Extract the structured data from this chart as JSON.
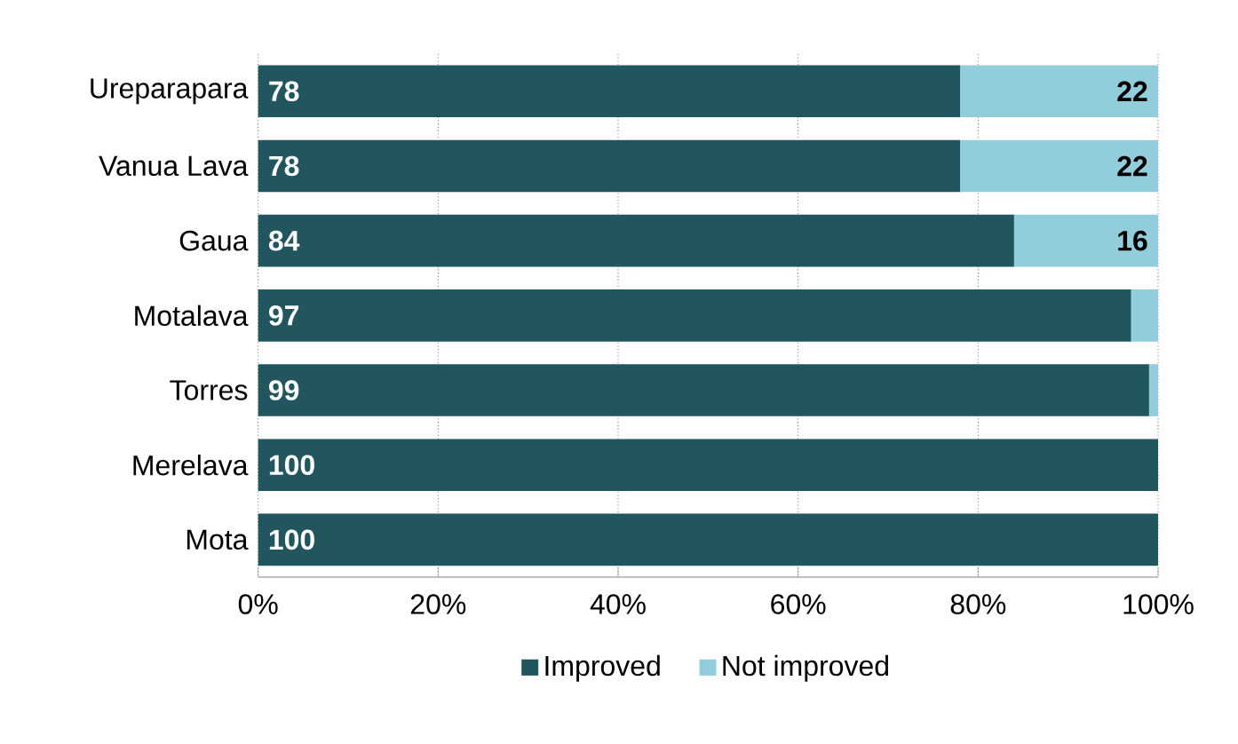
{
  "chart_data": {
    "type": "bar",
    "orientation": "horizontal",
    "stacked": true,
    "categories": [
      "Ureparapara",
      "Vanua Lava",
      "Gaua",
      "Motalava",
      "Torres",
      "Merelava",
      "Mota"
    ],
    "series": [
      {
        "name": "Improved",
        "color": "#22565f",
        "values": [
          78,
          78,
          84,
          97,
          99,
          100,
          100
        ],
        "value_labels": [
          "78",
          "78",
          "84",
          "97",
          "99",
          "100",
          "100"
        ]
      },
      {
        "name": "Not improved",
        "color": "#92cddc",
        "values": [
          22,
          22,
          16,
          3,
          1,
          0,
          0
        ],
        "value_labels": [
          "22",
          "22",
          "16",
          null,
          null,
          null,
          null
        ]
      }
    ],
    "xlim": [
      0,
      100
    ],
    "xticks": [
      {
        "value": 0,
        "label": "0%"
      },
      {
        "value": 20,
        "label": "20%"
      },
      {
        "value": 40,
        "label": "40%"
      },
      {
        "value": 60,
        "label": "60%"
      },
      {
        "value": 80,
        "label": "80%"
      },
      {
        "value": 100,
        "label": "100%"
      }
    ],
    "grid": "x",
    "legend": "bottom"
  }
}
